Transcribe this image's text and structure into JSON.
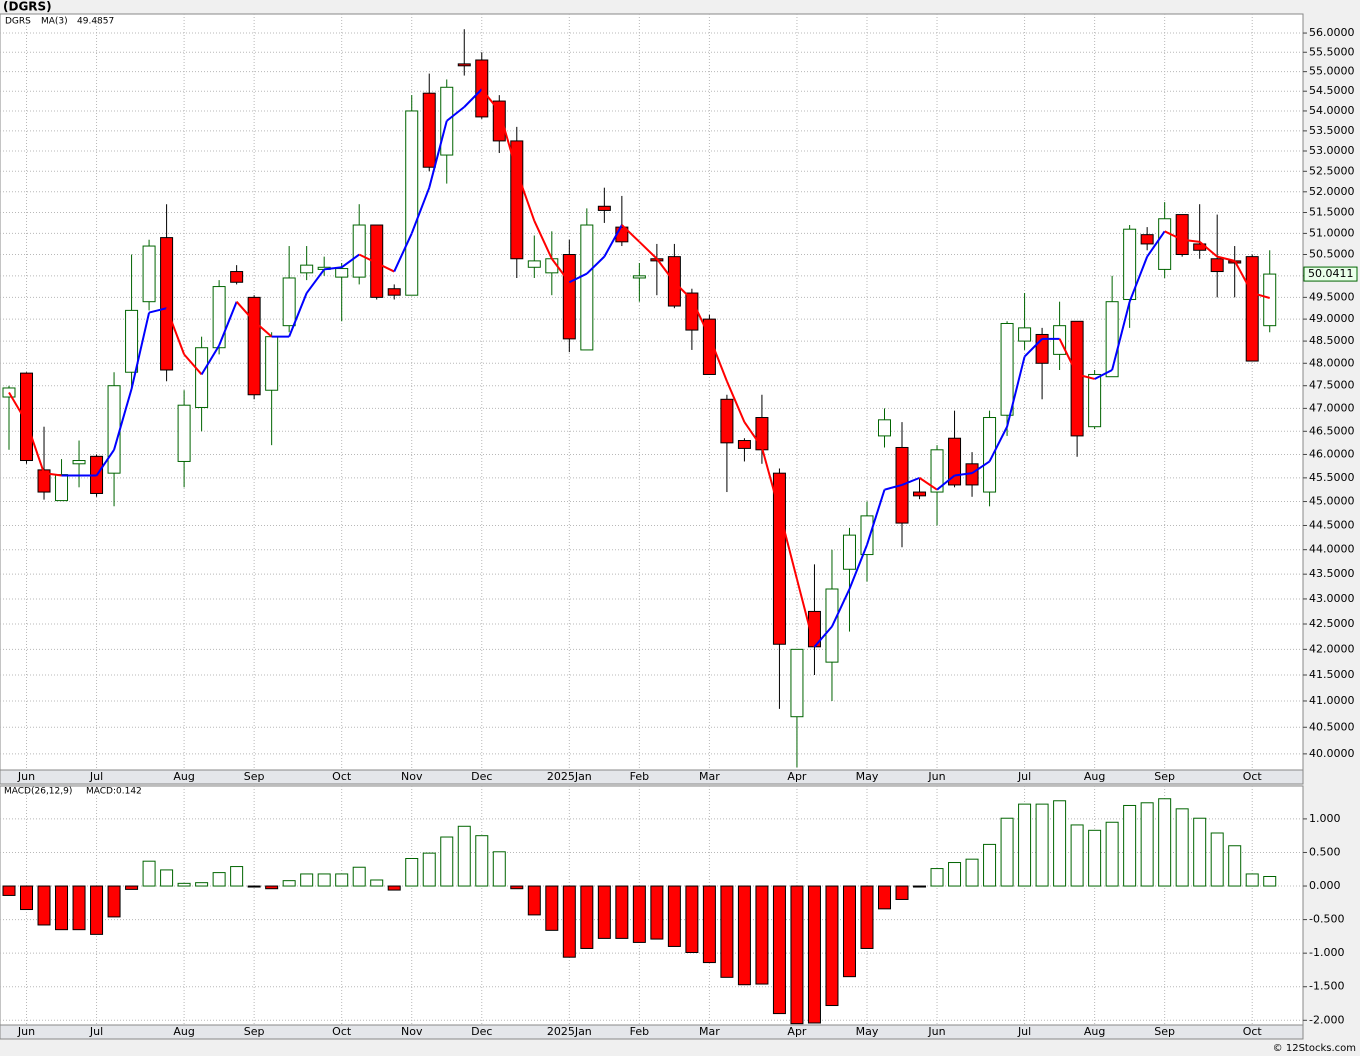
{
  "title": "(DGRS)",
  "footer": "© 12Stocks.com",
  "chart_data": [
    {
      "type": "candlestick",
      "name": "DGRS",
      "categories": [
        null,
        "Jun",
        null,
        null,
        null,
        "Jul",
        null,
        null,
        null,
        null,
        "Aug",
        null,
        null,
        null,
        "Sep",
        null,
        null,
        null,
        null,
        "Oct",
        null,
        null,
        null,
        "Nov",
        null,
        null,
        null,
        "Dec",
        null,
        null,
        null,
        null,
        "2025Jan",
        null,
        null,
        null,
        "Feb",
        null,
        null,
        null,
        "Mar",
        null,
        null,
        null,
        null,
        "Apr",
        null,
        null,
        null,
        "May",
        null,
        null,
        null,
        "Jun",
        null,
        null,
        null,
        null,
        "Jul",
        null,
        null,
        null,
        "Aug",
        null,
        null,
        null,
        "Sep",
        null,
        null,
        null,
        null,
        "Oct",
        null
      ],
      "open": [
        47.25,
        47.78,
        45.67,
        45.02,
        45.8,
        45.96,
        45.6,
        47.8,
        49.4,
        50.9,
        45.85,
        47.02,
        48.35,
        50.1,
        49.5,
        47.4,
        48.85,
        50.07,
        50.15,
        49.97,
        49.97,
        51.2,
        49.7,
        49.55,
        54.45,
        52.9,
        55.2,
        55.3,
        54.25,
        53.25,
        50.2,
        50.07,
        50.5,
        48.3,
        51.65,
        51.15,
        49.95,
        50.4,
        50.45,
        49.6,
        49.0,
        47.2,
        46.3,
        46.8,
        45.6,
        40.7,
        42.75,
        41.75,
        43.6,
        43.9,
        46.4,
        46.15,
        45.2,
        45.2,
        46.35,
        45.8,
        45.2,
        46.85,
        48.5,
        48.65,
        48.2,
        48.95,
        46.6,
        47.7,
        49.45,
        50.97,
        50.15,
        51.45,
        50.75,
        50.4,
        50.35,
        50.45,
        48.85
      ],
      "high": [
        47.5,
        47.8,
        46.6,
        45.9,
        46.3,
        46.0,
        47.8,
        50.5,
        50.85,
        51.7,
        47.4,
        48.6,
        49.9,
        50.25,
        49.55,
        48.7,
        50.7,
        50.7,
        50.45,
        50.3,
        51.7,
        51.2,
        49.8,
        54.4,
        54.95,
        54.8,
        56.1,
        55.5,
        54.4,
        53.6,
        50.95,
        51.05,
        50.85,
        51.6,
        52.1,
        51.9,
        50.3,
        50.75,
        50.75,
        49.7,
        49.1,
        47.3,
        46.35,
        47.3,
        45.7,
        42.0,
        43.7,
        44.0,
        44.45,
        45.0,
        47.0,
        46.7,
        45.5,
        46.2,
        46.95,
        46.05,
        46.95,
        48.95,
        49.6,
        48.8,
        49.4,
        48.95,
        47.85,
        50.0,
        51.2,
        51.15,
        51.75,
        51.45,
        51.7,
        51.45,
        50.7,
        50.5,
        50.6
      ],
      "low": [
        46.1,
        45.8,
        45.04,
        45.02,
        45.3,
        45.1,
        44.9,
        47.4,
        49.2,
        47.6,
        45.3,
        46.5,
        48.2,
        49.8,
        47.2,
        46.2,
        48.7,
        49.9,
        50.0,
        48.95,
        49.8,
        49.45,
        49.45,
        49.55,
        52.5,
        52.2,
        54.9,
        53.8,
        52.95,
        49.95,
        49.95,
        49.55,
        48.25,
        48.3,
        51.25,
        50.7,
        49.4,
        49.55,
        49.25,
        48.3,
        47.75,
        45.2,
        45.85,
        45.8,
        40.85,
        39.75,
        41.5,
        41.0,
        42.35,
        43.35,
        46.15,
        44.05,
        45.05,
        44.5,
        45.3,
        45.1,
        44.9,
        46.4,
        48.3,
        47.2,
        47.85,
        45.95,
        46.55,
        47.7,
        48.8,
        50.6,
        49.95,
        50.45,
        50.4,
        49.5,
        49.5,
        48.05,
        48.7
      ],
      "close": [
        47.45,
        45.87,
        45.2,
        45.57,
        45.87,
        45.17,
        47.5,
        49.2,
        50.7,
        47.85,
        47.07,
        48.35,
        49.75,
        49.85,
        47.3,
        48.6,
        49.95,
        50.25,
        50.2,
        50.17,
        51.2,
        49.5,
        49.55,
        54.0,
        52.6,
        54.6,
        55.15,
        53.85,
        53.25,
        50.4,
        50.35,
        50.4,
        48.55,
        51.2,
        51.55,
        50.8,
        50.0,
        50.35,
        49.3,
        48.75,
        47.75,
        46.25,
        46.13,
        46.1,
        42.1,
        42.0,
        42.05,
        43.2,
        44.3,
        44.7,
        46.75,
        44.55,
        45.12,
        46.1,
        45.35,
        45.35,
        46.8,
        48.9,
        48.8,
        48.0,
        48.85,
        46.4,
        47.75,
        49.4,
        51.1,
        50.75,
        51.35,
        50.5,
        50.6,
        50.1,
        50.3,
        48.05,
        50.0411
      ],
      "up_color": "#006400",
      "down_color": "#ff0000",
      "ma": {
        "name": "MA(3)",
        "up_color": "#0000ff",
        "down_color": "#ff0000",
        "values": [
          47.35,
          46.7,
          45.6,
          45.55,
          45.55,
          45.55,
          46.1,
          47.43,
          49.15,
          49.25,
          48.2,
          47.75,
          48.4,
          49.4,
          48.95,
          48.6,
          48.6,
          49.6,
          50.15,
          50.2,
          50.5,
          50.3,
          50.1,
          51.0,
          52.1,
          53.75,
          54.1,
          54.55,
          54.0,
          52.5,
          51.3,
          50.4,
          49.85,
          50.05,
          50.45,
          51.2,
          50.8,
          50.4,
          49.85,
          49.45,
          48.6,
          47.6,
          46.7,
          46.15,
          44.8,
          43.4,
          42.05,
          42.45,
          43.2,
          44.1,
          45.25,
          45.35,
          45.5,
          45.25,
          45.55,
          45.6,
          45.85,
          46.6,
          48.15,
          48.55,
          48.55,
          47.75,
          47.65,
          47.85,
          49.4,
          50.45,
          51.05,
          50.85,
          50.8,
          50.45,
          50.35,
          49.6,
          49.4857
        ]
      },
      "log": true,
      "grid": true,
      "ylim": [
        39.7,
        56.5
      ],
      "yticks": [
        {
          "value": 40,
          "label": "40.0000"
        },
        {
          "value": 40.5,
          "label": "40.5000"
        },
        {
          "value": 41,
          "label": "41.0000"
        },
        {
          "value": 41.5,
          "label": "41.5000"
        },
        {
          "value": 42,
          "label": "42.0000"
        },
        {
          "value": 42.5,
          "label": "42.5000"
        },
        {
          "value": 43,
          "label": "43.0000"
        },
        {
          "value": 43.5,
          "label": "43.5000"
        },
        {
          "value": 44,
          "label": "44.0000"
        },
        {
          "value": 44.5,
          "label": "44.5000"
        },
        {
          "value": 45,
          "label": "45.0000"
        },
        {
          "value": 45.5,
          "label": "45.5000"
        },
        {
          "value": 46,
          "label": "46.0000"
        },
        {
          "value": 46.5,
          "label": "46.5000"
        },
        {
          "value": 47,
          "label": "47.0000"
        },
        {
          "value": 47.5,
          "label": "47.5000"
        },
        {
          "value": 48,
          "label": "48.0000"
        },
        {
          "value": 48.5,
          "label": "48.5000"
        },
        {
          "value": 49,
          "label": "49.0000"
        },
        {
          "value": 49.5,
          "label": "49.5000"
        },
        {
          "value": 50,
          "label": "50.0000"
        },
        {
          "value": 50.5,
          "label": "50.5000"
        },
        {
          "value": 51,
          "label": "51.0000"
        },
        {
          "value": 51.5,
          "label": "51.5000"
        },
        {
          "value": 52,
          "label": "52.0000"
        },
        {
          "value": 52.5,
          "label": "52.5000"
        },
        {
          "value": 53,
          "label": "53.0000"
        },
        {
          "value": 53.5,
          "label": "53.5000"
        },
        {
          "value": 54,
          "label": "54.0000"
        },
        {
          "value": 54.5,
          "label": "54.5000"
        },
        {
          "value": 55,
          "label": "55.0000"
        },
        {
          "value": 55.5,
          "label": "55.5000"
        },
        {
          "value": 56,
          "label": "56.0000"
        }
      ]
    },
    {
      "type": "bar",
      "name": "MACD(26,12,9)",
      "value_text": "MACD:0.142",
      "categories": [
        null,
        "Jun",
        null,
        null,
        null,
        "Jul",
        null,
        null,
        null,
        null,
        "Aug",
        null,
        null,
        null,
        "Sep",
        null,
        null,
        null,
        null,
        "Oct",
        null,
        null,
        null,
        "Nov",
        null,
        null,
        null,
        "Dec",
        null,
        null,
        null,
        null,
        "2025Jan",
        null,
        null,
        null,
        "Feb",
        null,
        null,
        null,
        "Mar",
        null,
        null,
        null,
        null,
        "Apr",
        null,
        null,
        null,
        "May",
        null,
        null,
        null,
        "Jun",
        null,
        null,
        null,
        null,
        "Jul",
        null,
        null,
        null,
        "Aug",
        null,
        null,
        null,
        "Sep",
        null,
        null,
        null,
        null,
        "Oct",
        null
      ],
      "values": [
        -0.14,
        -0.35,
        -0.58,
        -0.65,
        -0.65,
        -0.72,
        -0.46,
        -0.05,
        0.37,
        0.24,
        0.04,
        0.05,
        0.2,
        0.29,
        -0.01,
        -0.04,
        0.08,
        0.18,
        0.18,
        0.18,
        0.28,
        0.09,
        -0.06,
        0.41,
        0.49,
        0.73,
        0.89,
        0.75,
        0.51,
        -0.04,
        -0.43,
        -0.66,
        -1.06,
        -0.93,
        -0.78,
        -0.78,
        -0.84,
        -0.79,
        -0.9,
        -0.99,
        -1.14,
        -1.36,
        -1.47,
        -1.46,
        -1.9,
        -2.05,
        -2.04,
        -1.78,
        -1.35,
        -0.93,
        -0.34,
        -0.2,
        -0.01,
        0.26,
        0.35,
        0.4,
        0.62,
        1.01,
        1.22,
        1.22,
        1.27,
        0.91,
        0.83,
        0.95,
        1.2,
        1.24,
        1.3,
        1.15,
        1.01,
        0.79,
        0.6,
        0.18,
        0.142
      ],
      "up_color": "#006400",
      "down_color": "#ff0000",
      "text_color": "#0000ff",
      "grid": true,
      "ylim": [
        -2.07,
        1.49
      ],
      "yticks": [
        {
          "value": 1,
          "label": "1.000"
        },
        {
          "value": 0.5,
          "label": "0.500"
        },
        {
          "value": 0,
          "label": "0.000"
        },
        {
          "value": -0.5,
          "label": "-0.500"
        },
        {
          "value": -1,
          "label": "-1.000"
        },
        {
          "value": -1.5,
          "label": "-1.500"
        },
        {
          "value": -2,
          "label": "-2.000"
        }
      ]
    }
  ]
}
